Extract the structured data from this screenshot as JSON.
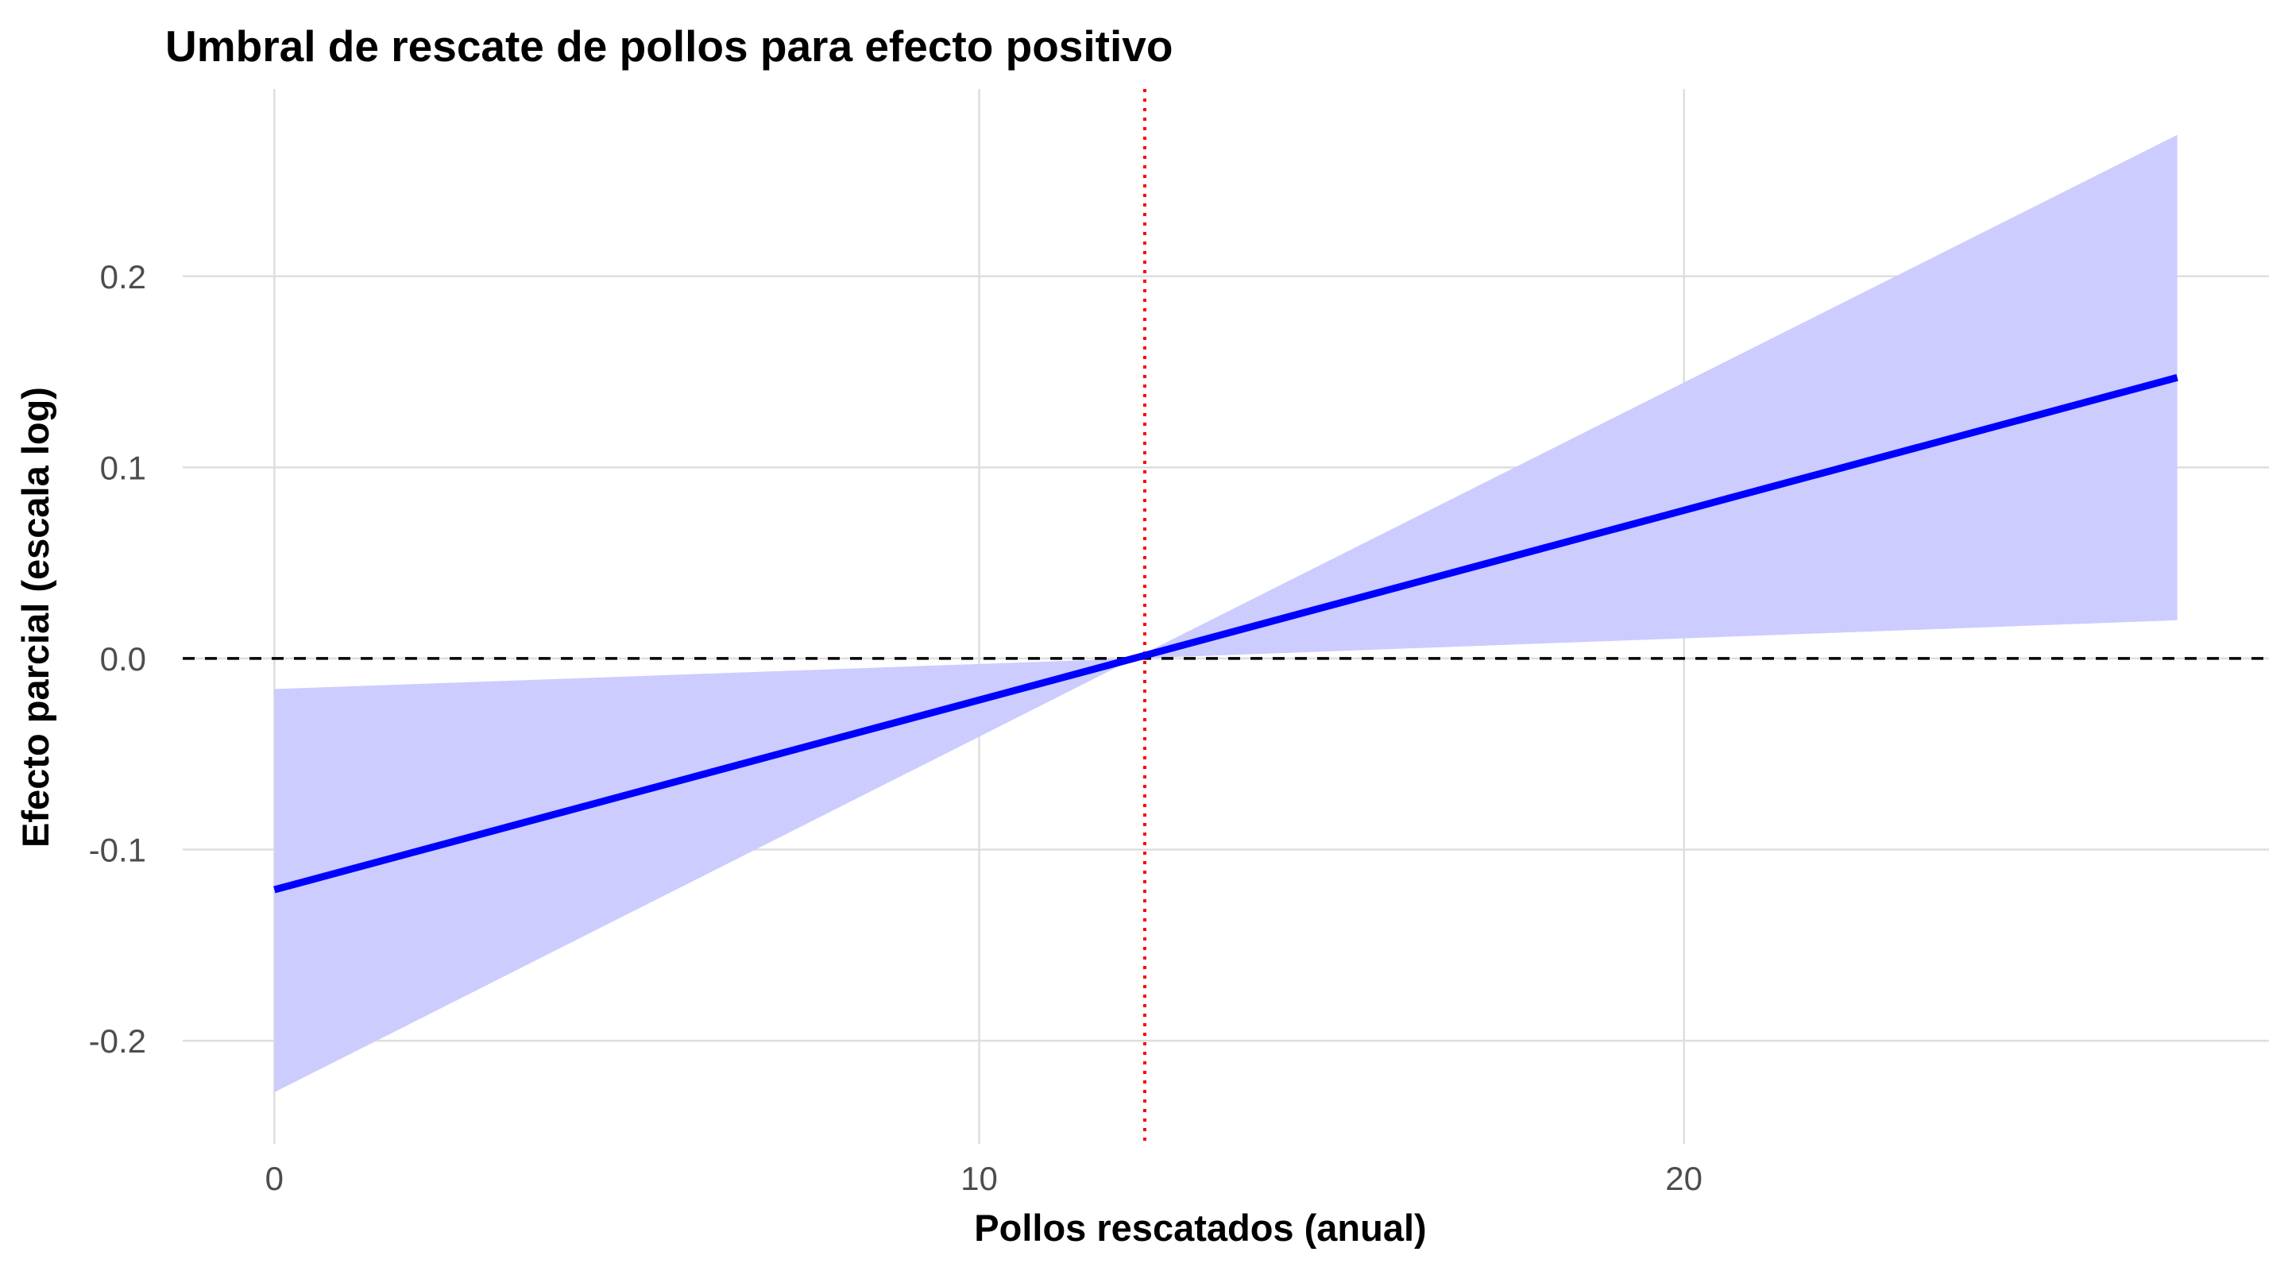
{
  "chart_data": {
    "type": "line",
    "title": "Umbral de rescate de pollos para efecto positivo",
    "xlabel": "Pollos rescatados (anual)",
    "ylabel": "Efecto parcial (escala log)",
    "xlim": [
      -1.3,
      28.3
    ],
    "ylim": [
      -0.254,
      0.298
    ],
    "x_ticks": [
      0,
      10,
      20
    ],
    "x_tick_labels": [
      "0",
      "10",
      "20"
    ],
    "y_ticks": [
      -0.2,
      -0.1,
      0.0,
      0.1,
      0.2
    ],
    "y_tick_labels": [
      "-0.2",
      "-0.1",
      "0.0",
      "0.1",
      "0.2"
    ],
    "grid": true,
    "series": [
      {
        "x": [
          0,
          27
        ],
        "values": [
          -0.121,
          0.147
        ],
        "color": "#0000ff"
      }
    ],
    "ribbon": {
      "x": [
        0,
        12.2,
        27
      ],
      "lower": [
        -0.227,
        0.0,
        0.02
      ],
      "upper": [
        -0.016,
        0.0,
        0.274
      ],
      "color": "#ccccff"
    },
    "reference_lines": {
      "horizontal_y": 0.0,
      "horizontal_color": "#000000",
      "vertical_x": 12.35,
      "vertical_color": "#ff0000"
    }
  }
}
